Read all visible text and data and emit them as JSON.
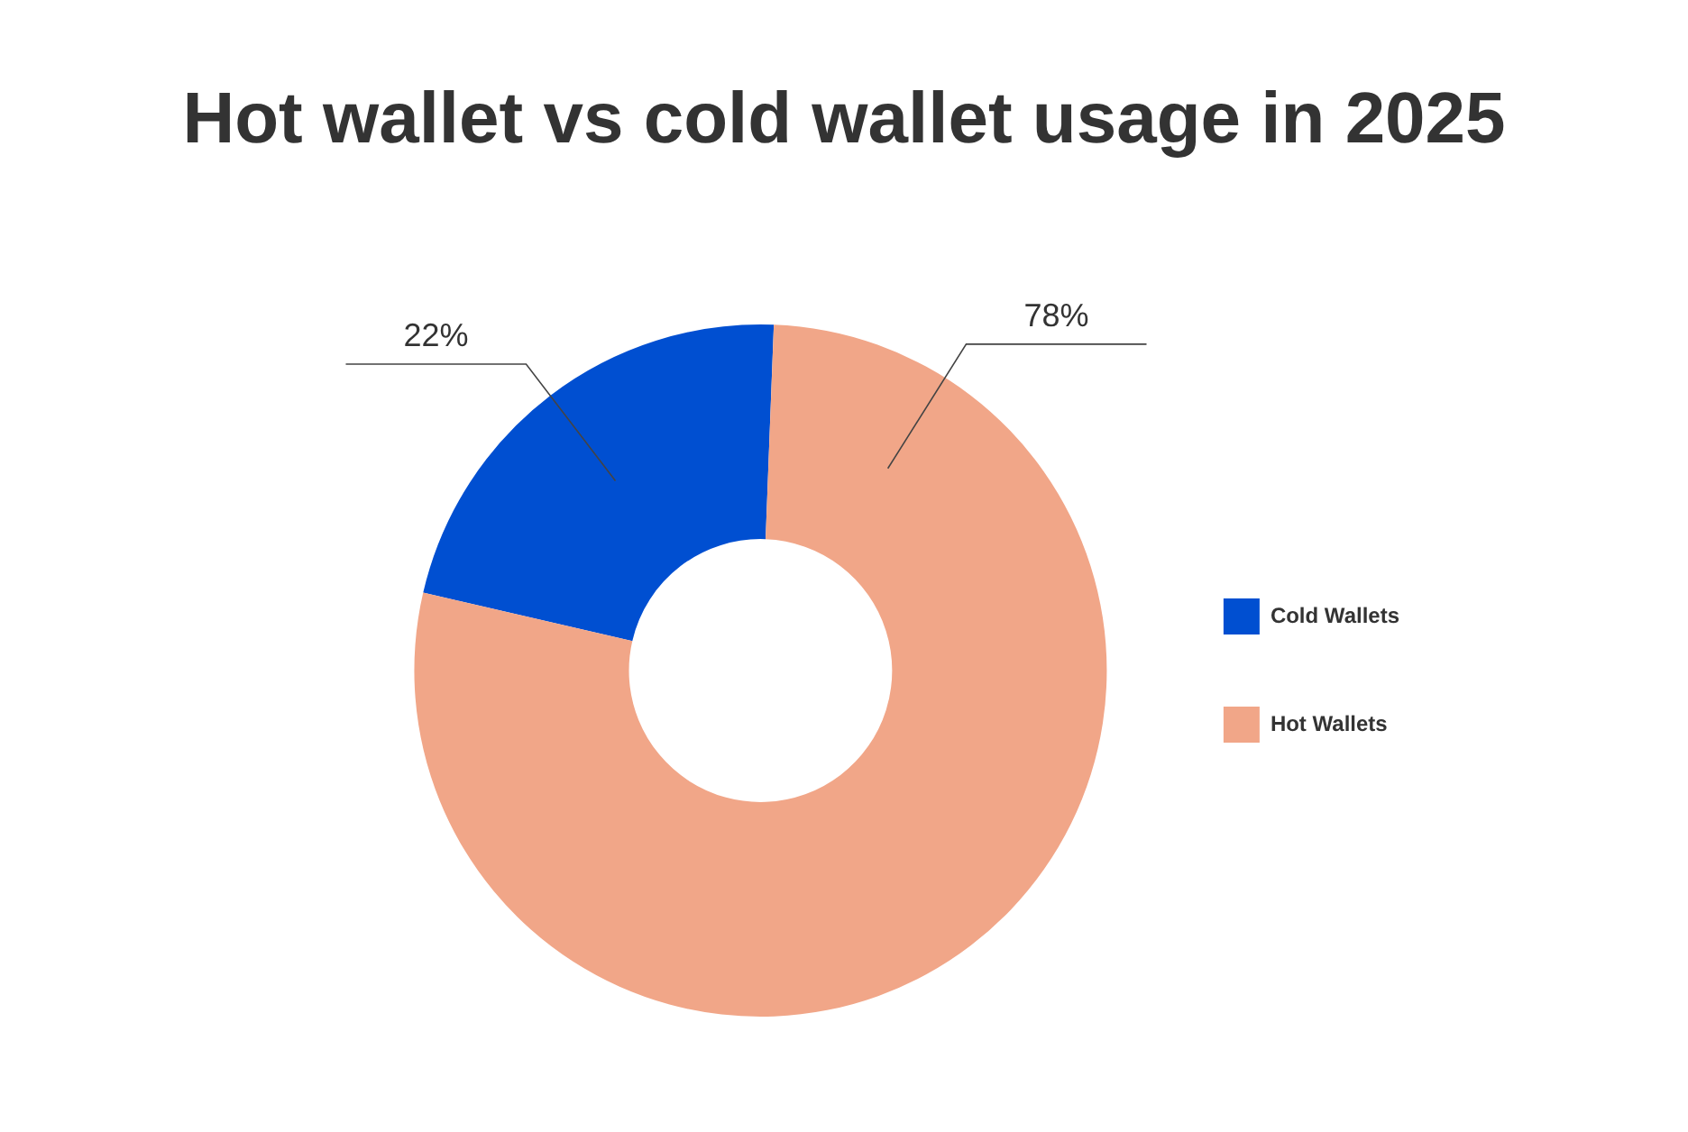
{
  "chart_data": {
    "type": "donut",
    "title": "Hot wallet vs cold wallet usage in 2025",
    "categories": [
      "Cold Wallets",
      "Hot Wallets"
    ],
    "values": [
      22,
      78
    ],
    "colors": [
      "#004fd1",
      "#f1a688"
    ],
    "value_labels": [
      "22%",
      "78%"
    ],
    "legend": "right"
  }
}
